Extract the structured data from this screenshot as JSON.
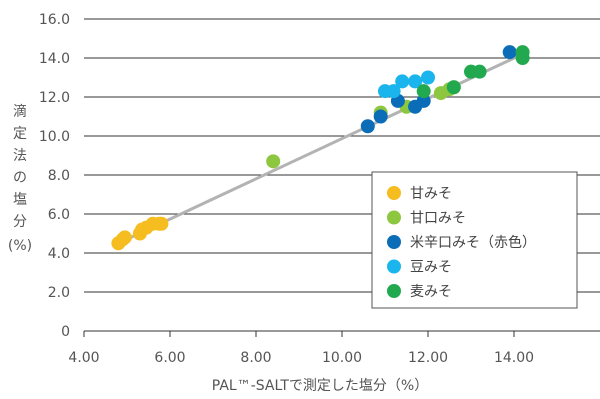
{
  "chart_data": {
    "type": "scatter",
    "title": "",
    "xlabel": "PAL™-SALTで測定した塩分（%）",
    "ylabel_lines": [
      "滴",
      "定",
      "法",
      "の",
      "塩",
      "分",
      "(%)"
    ],
    "xlim": [
      4.0,
      16.0
    ],
    "ylim": [
      0,
      16.0
    ],
    "x_ticks": [
      {
        "value": 4.0,
        "label": "4.00"
      },
      {
        "value": 6.0,
        "label": "6.00"
      },
      {
        "value": 8.0,
        "label": "8.00"
      },
      {
        "value": 10.0,
        "label": "10.00"
      },
      {
        "value": 12.0,
        "label": "12.00"
      },
      {
        "value": 14.0,
        "label": "14.00"
      }
    ],
    "y_ticks": [
      {
        "value": 0,
        "label": "0"
      },
      {
        "value": 2.0,
        "label": "2.0"
      },
      {
        "value": 4.0,
        "label": "4.0"
      },
      {
        "value": 6.0,
        "label": "6.0"
      },
      {
        "value": 8.0,
        "label": "8.0"
      },
      {
        "value": 10.0,
        "label": "10.0"
      },
      {
        "value": 12.0,
        "label": "12.0"
      },
      {
        "value": 14.0,
        "label": "14.0"
      },
      {
        "value": 16.0,
        "label": "16.0"
      }
    ],
    "grid": "horizontal",
    "legend_position": "right",
    "trendline": {
      "color": "#b3b3b3",
      "points": [
        [
          4.7,
          4.4
        ],
        [
          14.2,
          14.2
        ]
      ]
    },
    "series": [
      {
        "name": "甘みそ",
        "color": "#f5bd1f",
        "points": [
          [
            4.8,
            4.5
          ],
          [
            4.9,
            4.7
          ],
          [
            4.95,
            4.8
          ],
          [
            5.3,
            5.0
          ],
          [
            5.35,
            5.2
          ],
          [
            5.45,
            5.3
          ],
          [
            5.6,
            5.5
          ],
          [
            5.75,
            5.5
          ],
          [
            5.8,
            5.5
          ]
        ]
      },
      {
        "name": "甘口みそ",
        "color": "#8dc63f",
        "points": [
          [
            8.4,
            8.7
          ],
          [
            10.9,
            11.2
          ],
          [
            11.5,
            11.5
          ],
          [
            12.3,
            12.2
          ],
          [
            12.5,
            12.4
          ],
          [
            12.6,
            12.5
          ]
        ]
      },
      {
        "name": "米辛口みそ（赤色）",
        "color": "#0b6db7",
        "points": [
          [
            10.6,
            10.5
          ],
          [
            10.9,
            11.0
          ],
          [
            11.3,
            11.8
          ],
          [
            11.7,
            11.5
          ],
          [
            11.9,
            11.8
          ],
          [
            13.9,
            14.3
          ]
        ]
      },
      {
        "name": "豆みそ",
        "color": "#1ab5ec",
        "points": [
          [
            11.0,
            12.3
          ],
          [
            11.2,
            12.3
          ],
          [
            11.4,
            12.8
          ],
          [
            11.7,
            12.8
          ],
          [
            12.0,
            13.0
          ]
        ]
      },
      {
        "name": "麦みそ",
        "color": "#22a94f",
        "points": [
          [
            11.9,
            12.3
          ],
          [
            12.6,
            12.5
          ],
          [
            13.0,
            13.3
          ],
          [
            13.2,
            13.3
          ],
          [
            14.2,
            14.0
          ],
          [
            14.2,
            14.3
          ]
        ]
      }
    ]
  }
}
